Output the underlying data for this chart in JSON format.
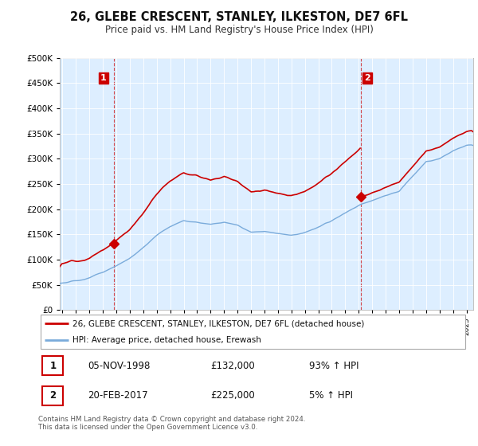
{
  "title": "26, GLEBE CRESCENT, STANLEY, ILKESTON, DE7 6FL",
  "subtitle": "Price paid vs. HM Land Registry's House Price Index (HPI)",
  "legend_line1": "26, GLEBE CRESCENT, STANLEY, ILKESTON, DE7 6FL (detached house)",
  "legend_line2": "HPI: Average price, detached house, Erewash",
  "annotation1_label": "1",
  "annotation1_date": "05-NOV-1998",
  "annotation1_price": "£132,000",
  "annotation1_hpi": "93% ↑ HPI",
  "annotation2_label": "2",
  "annotation2_date": "20-FEB-2017",
  "annotation2_price": "£225,000",
  "annotation2_hpi": "5% ↑ HPI",
  "sale1_year": 1998.85,
  "sale1_value": 132000,
  "sale2_year": 2017.13,
  "sale2_value": 225000,
  "hpi_color": "#7aabdb",
  "price_color": "#cc0000",
  "annotation_box_color": "#cc0000",
  "background_color": "#ffffff",
  "chart_bg_color": "#ddeeff",
  "grid_color": "#ffffff",
  "footer_text": "Contains HM Land Registry data © Crown copyright and database right 2024.\nThis data is licensed under the Open Government Licence v3.0.",
  "ylim": [
    0,
    500000
  ],
  "xlim_start": 1994.8,
  "xlim_end": 2025.5,
  "hpi_keypoints_x": [
    1995.0,
    1996.0,
    1997.0,
    1998.0,
    1999.0,
    2000.0,
    2001.0,
    2002.0,
    2003.0,
    2004.0,
    2005.0,
    2006.0,
    2007.0,
    2008.0,
    2009.0,
    2010.0,
    2011.0,
    2012.0,
    2013.0,
    2014.0,
    2015.0,
    2016.0,
    2017.0,
    2018.0,
    2019.0,
    2020.0,
    2021.0,
    2022.0,
    2023.0,
    2024.0,
    2025.0
  ],
  "hpi_keypoints_y": [
    52000,
    56000,
    62000,
    72000,
    85000,
    100000,
    120000,
    145000,
    163000,
    175000,
    173000,
    168000,
    175000,
    168000,
    155000,
    158000,
    155000,
    152000,
    158000,
    168000,
    180000,
    195000,
    210000,
    220000,
    228000,
    235000,
    265000,
    295000,
    300000,
    315000,
    325000
  ]
}
